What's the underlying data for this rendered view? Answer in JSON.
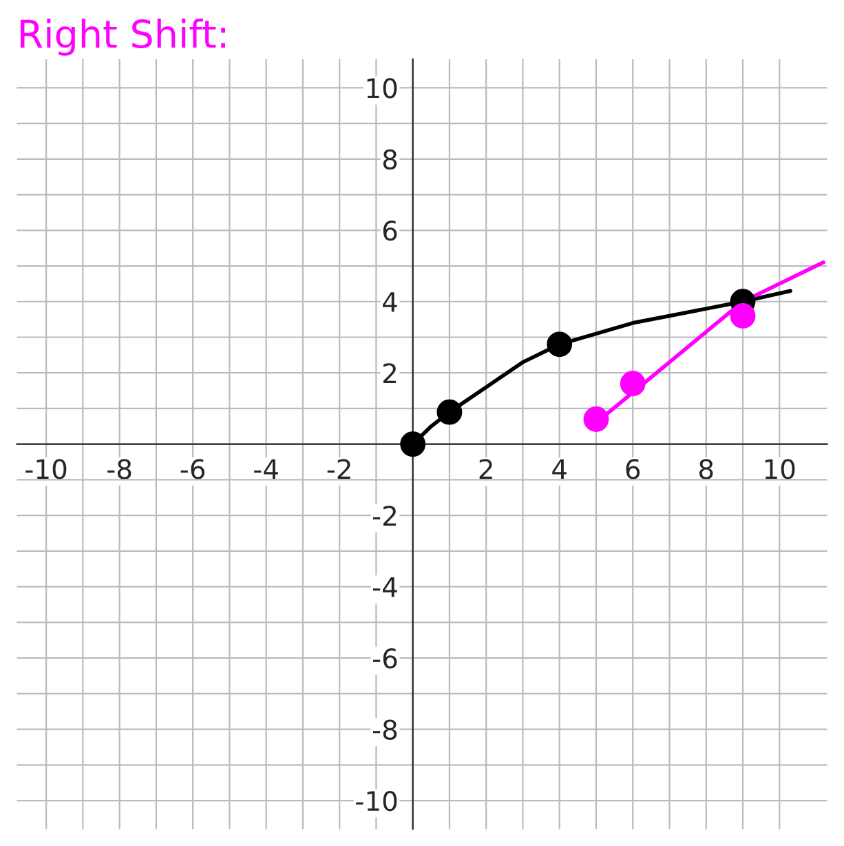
{
  "chart_data": {
    "type": "line",
    "title": "Right Shift:",
    "xlim": [
      -10.8,
      11.3
    ],
    "ylim": [
      -10.8,
      10.8
    ],
    "xticks": [
      -10,
      {
        "value": -9,
        "label": null
      },
      -8,
      {
        "value": -7,
        "label": null
      },
      -6,
      {
        "value": -5,
        "label": null
      },
      -4,
      {
        "value": -3,
        "label": null
      },
      -2,
      {
        "value": -1,
        "label": null
      },
      {
        "value": 0,
        "label": null
      },
      {
        "value": 1,
        "label": null
      },
      2,
      {
        "value": 3,
        "label": null
      },
      4,
      {
        "value": 5,
        "label": null
      },
      6,
      {
        "value": 7,
        "label": null
      },
      8,
      {
        "value": 9,
        "label": null
      },
      10
    ],
    "yticks": [
      -10,
      {
        "value": -9,
        "label": null
      },
      -8,
      {
        "value": -7,
        "label": null
      },
      -6,
      {
        "value": -5,
        "label": null
      },
      -4,
      {
        "value": -3,
        "label": null
      },
      -2,
      {
        "value": -1,
        "label": null
      },
      {
        "value": 0,
        "label": null
      },
      {
        "value": 1,
        "label": null
      },
      2,
      {
        "value": 3,
        "label": null
      },
      4,
      {
        "value": 5,
        "label": null
      },
      6,
      {
        "value": 7,
        "label": null
      },
      8,
      {
        "value": 9,
        "label": null
      },
      10
    ],
    "grid": true,
    "series": [
      {
        "color": "#000000",
        "x": [
          0,
          0.5,
          1,
          2,
          3,
          4,
          5,
          6,
          7,
          8,
          9,
          10.3
        ],
        "values": [
          0,
          0.5,
          0.9,
          1.6,
          2.3,
          2.8,
          3.1,
          3.4,
          3.6,
          3.8,
          4.0,
          4.3
        ]
      },
      {
        "type": "scatter",
        "color": "#000000",
        "marker": "circle",
        "x": [
          0,
          1,
          4,
          9
        ],
        "values": [
          0,
          0.9,
          2.8,
          4.0
        ]
      },
      {
        "color": "#ff00ff",
        "x": [
          5,
          9,
          11.2
        ],
        "values": [
          0.6,
          4.0,
          5.1
        ]
      },
      {
        "type": "scatter",
        "color": "#ff00ff",
        "marker": "circle",
        "x": [
          5,
          6,
          9
        ],
        "values": [
          0.7,
          1.7,
          3.6
        ]
      }
    ]
  }
}
